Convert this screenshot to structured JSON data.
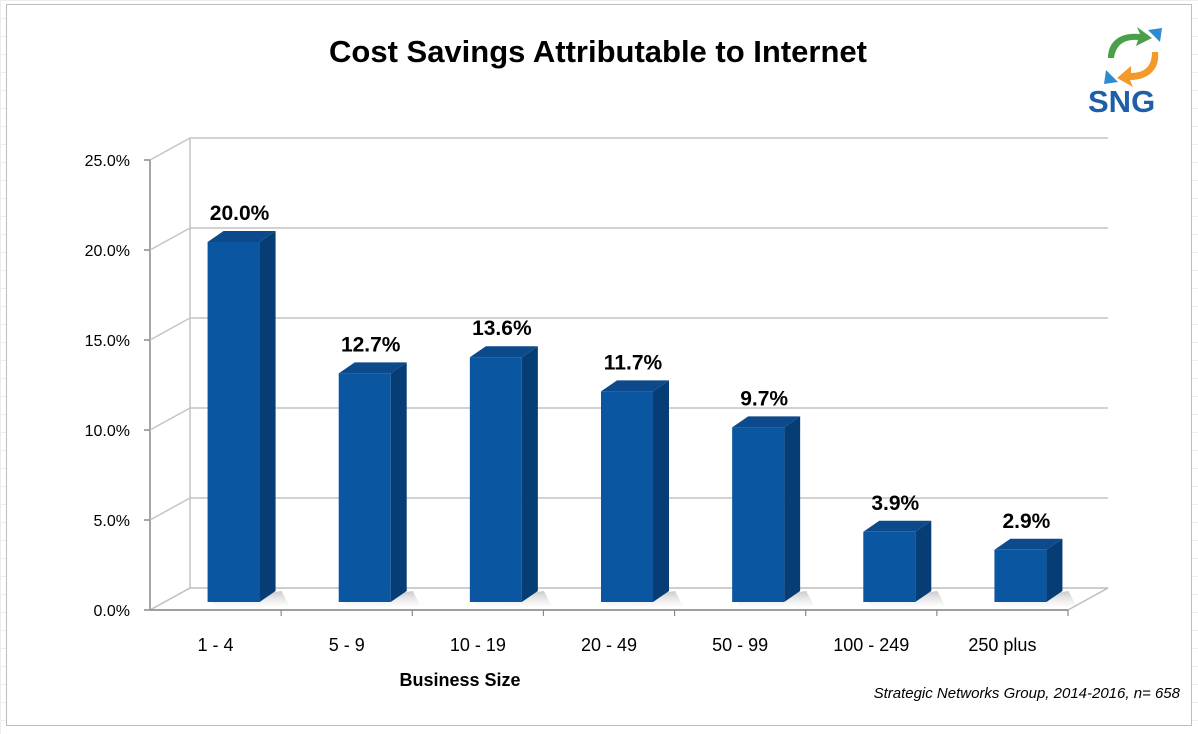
{
  "chart_data": {
    "type": "bar",
    "title": "Cost Savings Attributable to Internet",
    "xlabel": "Business Size",
    "ylabel": "",
    "categories": [
      "1 - 4",
      "5 - 9",
      "10 - 19",
      "20 - 49",
      "50 - 99",
      "100 - 249",
      "250 plus"
    ],
    "values": [
      20.0,
      12.7,
      13.6,
      11.7,
      9.7,
      3.9,
      2.9
    ],
    "data_labels": [
      "20.0%",
      "12.7%",
      "13.6%",
      "11.7%",
      "9.7%",
      "3.9%",
      "2.9%"
    ],
    "ylim": [
      0,
      25
    ],
    "yticks": [
      "0.0%",
      "5.0%",
      "10.0%",
      "15.0%",
      "20.0%",
      "25.0%"
    ],
    "grid": true,
    "style": "3d-column",
    "legend": "none",
    "bar_color": "#0a56a0"
  },
  "source_note": "Strategic Networks Group, 2014-2016, n= 658",
  "logo": {
    "text": "SNG",
    "icon": "recycle-arrows-icon"
  }
}
